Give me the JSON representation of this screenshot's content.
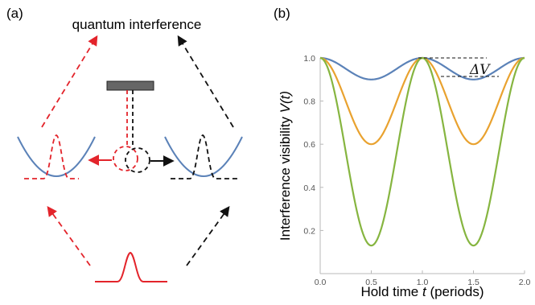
{
  "panel_a": {
    "label": "(a)",
    "title": "quantum interference",
    "colors": {
      "red": "#e3242b",
      "black": "#111111",
      "well": "#5b82b8",
      "mirror": "#666666"
    }
  },
  "panel_b": {
    "label": "(b)",
    "annotation": "ΔV"
  },
  "chart_data": {
    "type": "line",
    "xlabel": "Hold time t (periods)",
    "xlabel_plain": "Hold time ",
    "xlabel_var": "t",
    "xlabel_unit": " (periods)",
    "ylabel_plain": "Interference visibility ",
    "ylabel_var": "V(t)",
    "xlim": [
      0,
      2
    ],
    "ylim": [
      0,
      1
    ],
    "xticks": [
      "0.0",
      "0.5",
      "1.0",
      "1.5",
      "2.0"
    ],
    "yticks": [
      "0.2",
      "0.4",
      "0.6",
      "0.8",
      "1.0"
    ],
    "xtick_values": [
      0,
      0.5,
      1,
      1.5,
      2
    ],
    "ytick_values": [
      0.2,
      0.4,
      0.6,
      0.8,
      1.0
    ],
    "series": [
      {
        "color": "#5b82b8",
        "min_at_half_period": 0.9
      },
      {
        "color": "#e9a22f",
        "min_at_half_period": 0.6
      },
      {
        "color": "#86b540",
        "min_at_half_period": 0.13
      }
    ]
  }
}
